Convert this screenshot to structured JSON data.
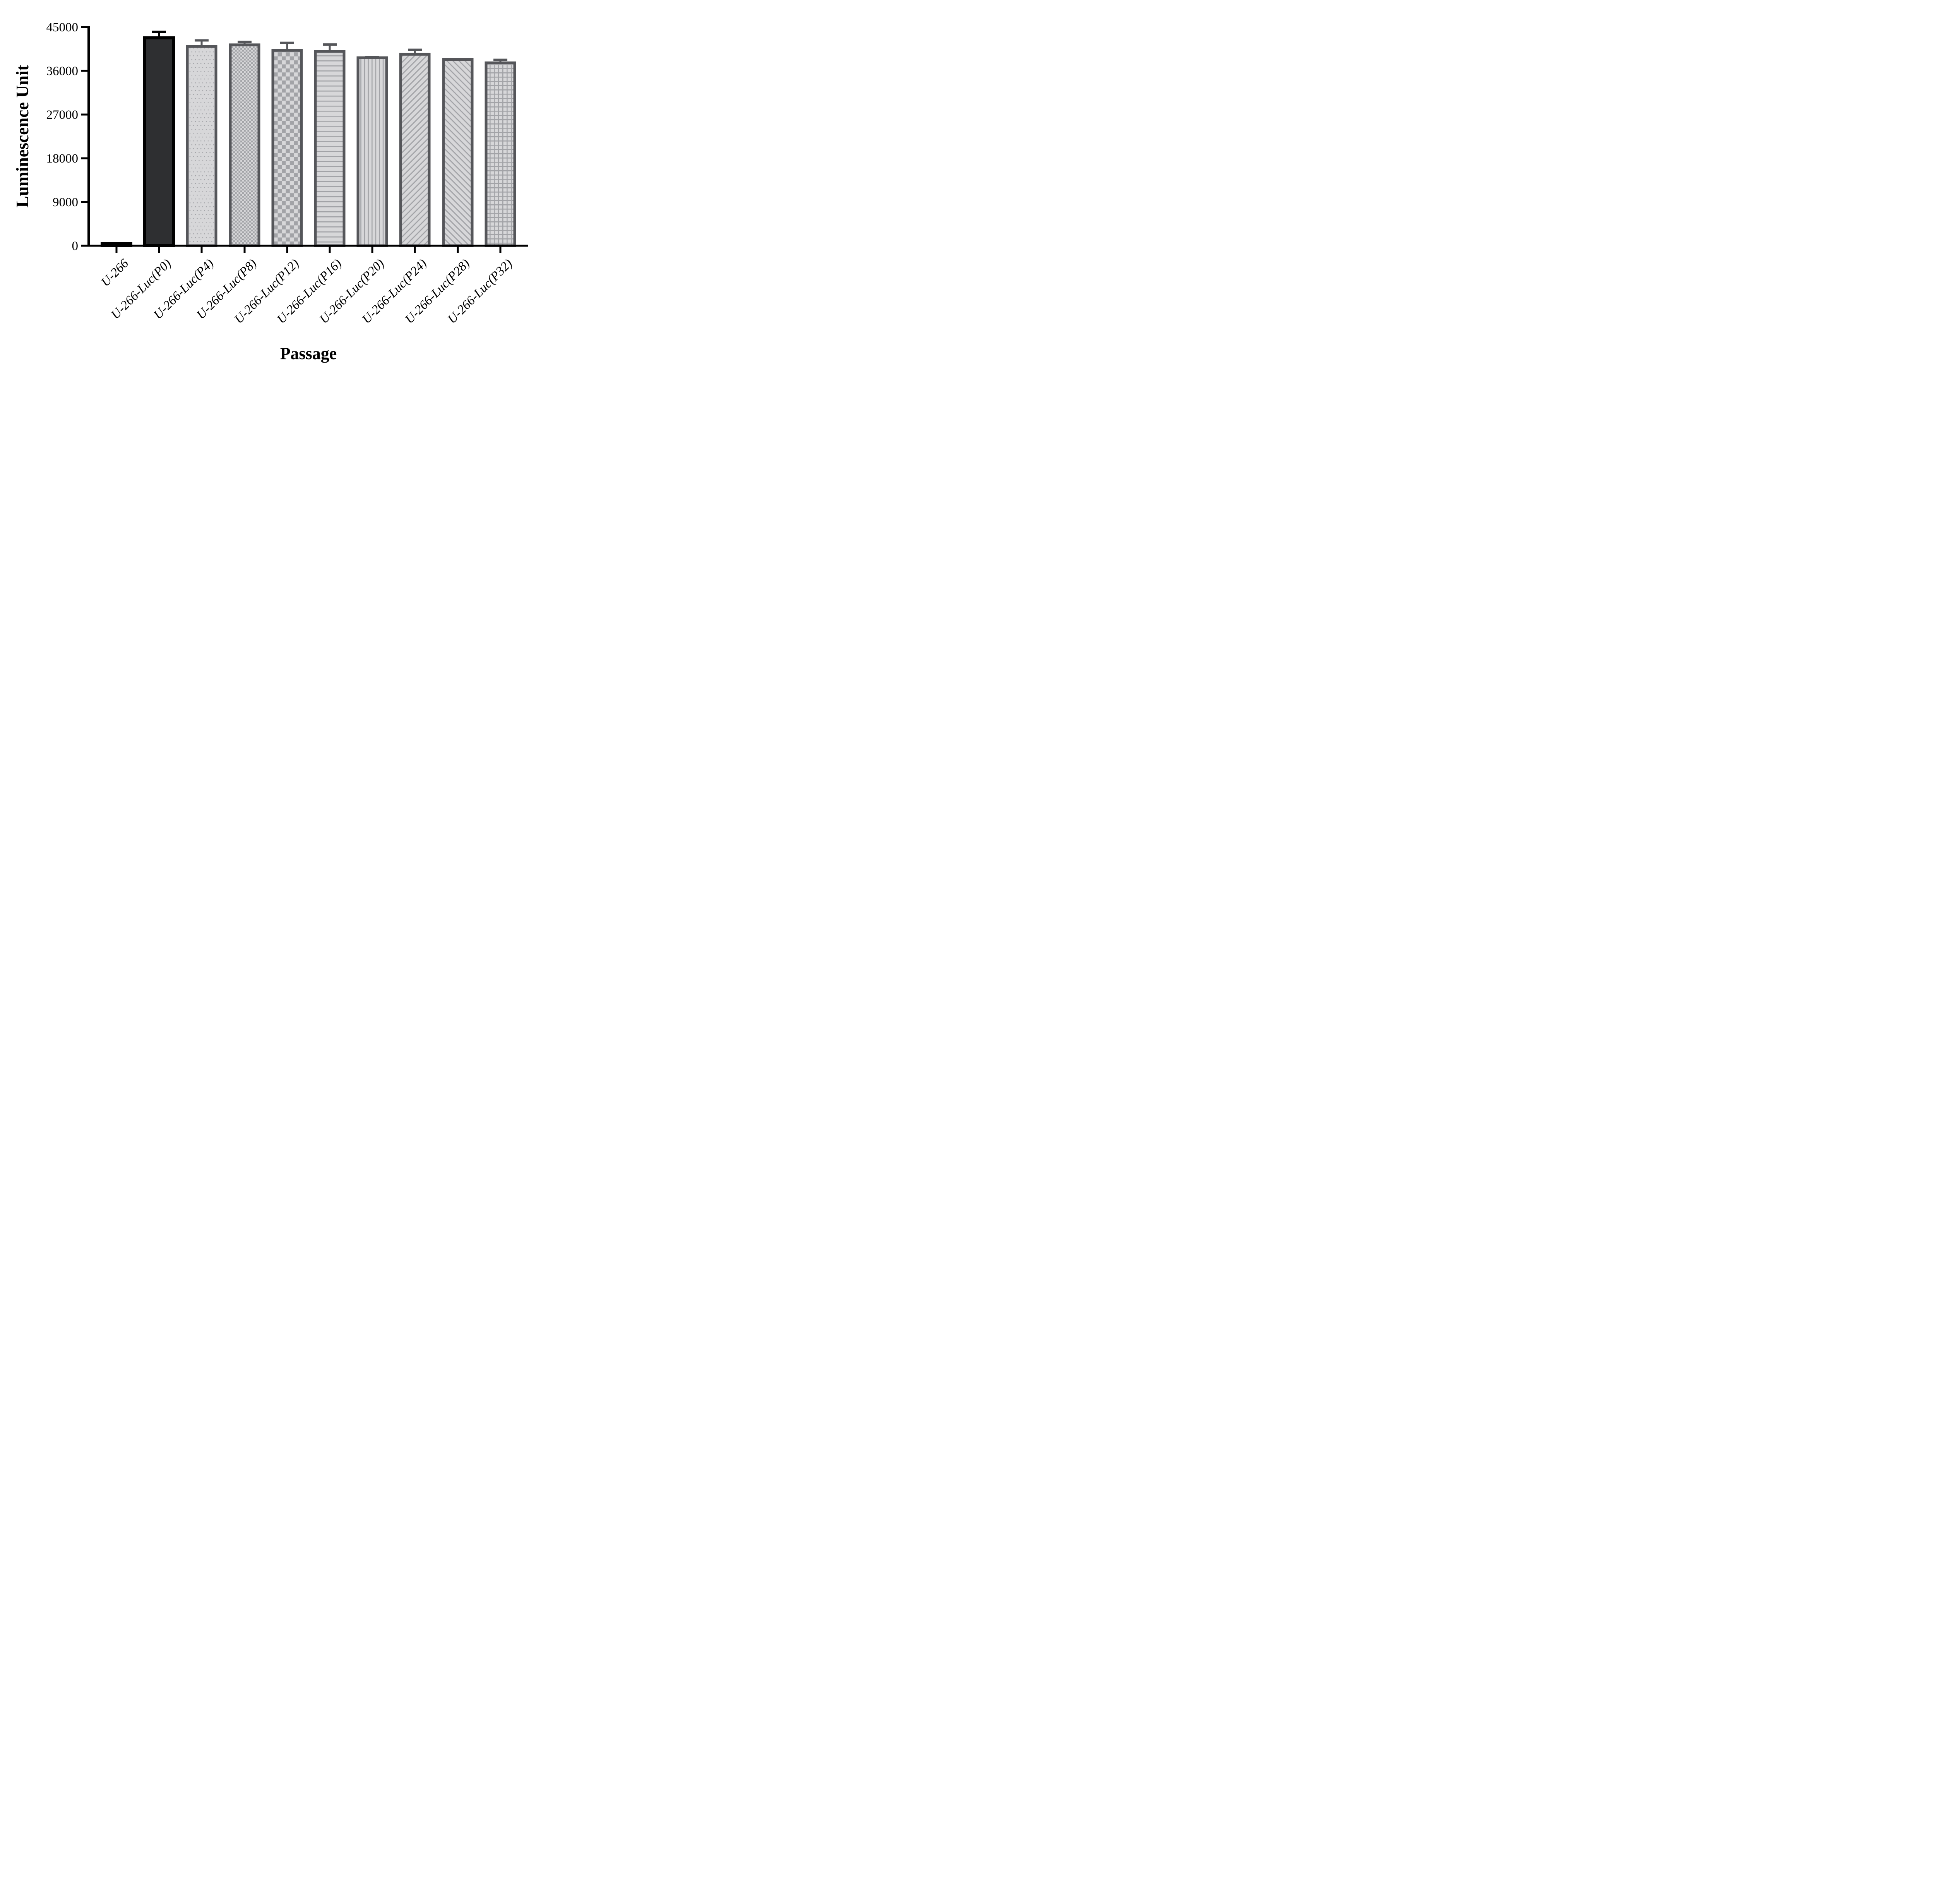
{
  "chart_data": {
    "type": "bar",
    "title": "",
    "xlabel": "Passage",
    "ylabel": "Luminescence Unit",
    "ylim": [
      0,
      45000
    ],
    "yticks": [
      0,
      9000,
      18000,
      27000,
      36000,
      45000
    ],
    "grid": false,
    "legend": false,
    "categories": [
      "U-266",
      "U-266-Luc(P0)",
      "U-266-Luc(P4)",
      "U-266-Luc(P8)",
      "U-266-Luc(P12)",
      "U-266-Luc(P16)",
      "U-266-Luc(P20)",
      "U-266-Luc(P24)",
      "U-266-Luc(P28)",
      "U-266-Luc(P32)"
    ],
    "values": [
      400,
      42800,
      41000,
      41350,
      40200,
      40000,
      38700,
      39400,
      38350,
      37650
    ],
    "errors_plus": [
      130,
      1450,
      1500,
      850,
      1800,
      1650,
      380,
      1170,
      250,
      850
    ],
    "bar_styles": [
      "solid-black",
      "solid-dark",
      "dots",
      "checker-fine",
      "checker-coarse",
      "hlines",
      "vlines",
      "diag-up",
      "diag-down",
      "grid"
    ],
    "colors": {
      "axis": "#000000",
      "solid_black_fill": "#0a0a0a",
      "solid_dark_fill": "#2e2f31",
      "gray_border": "#55565a",
      "pattern_bg": "#d7d7d9",
      "pattern_fg": "#a2a3a7"
    }
  }
}
